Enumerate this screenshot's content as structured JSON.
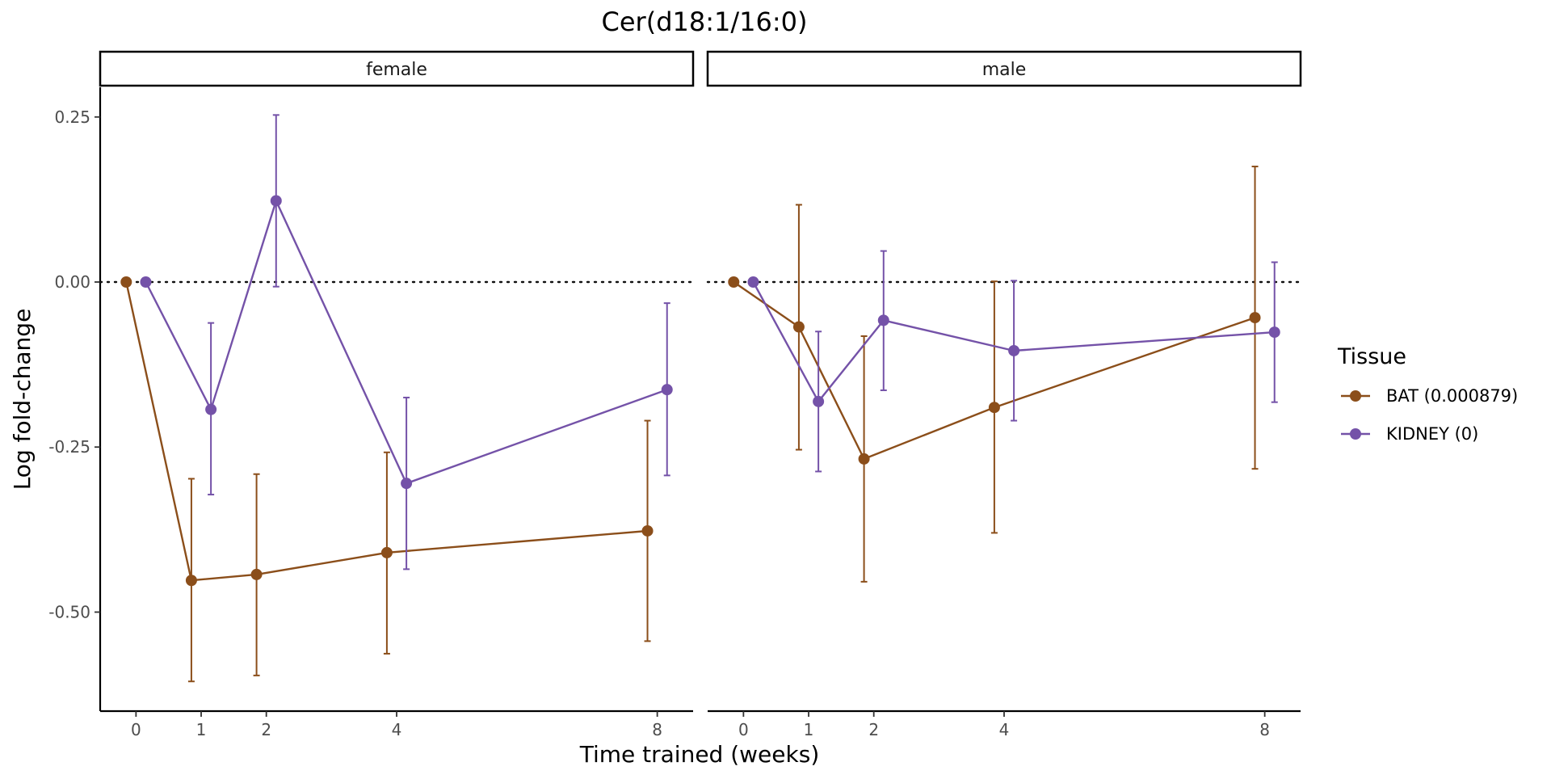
{
  "chart_data": {
    "type": "line",
    "title": "Cer(d18:1/16:0)",
    "xlabel": "Time trained (weeks)",
    "ylabel": "Log fold-change",
    "x_ticks": [
      0,
      1,
      2,
      4,
      8
    ],
    "y_ticks": [
      0.25,
      0.0,
      -0.25,
      -0.5
    ],
    "y_tick_labels": [
      "0.25",
      "0.00",
      "-0.25",
      "-0.50"
    ],
    "xlim": [
      -0.55,
      8.55
    ],
    "ylim": [
      -0.65,
      0.295
    ],
    "reference_line": {
      "y": 0,
      "style": "dotted"
    },
    "legend": {
      "title": "Tissue",
      "placement": "right",
      "entries": [
        "BAT (0.000879)",
        "KIDNEY (0)"
      ]
    },
    "colors": {
      "BAT": "#8B4E1A",
      "KIDNEY": "#7452A8"
    },
    "dodge": 0.15,
    "panels": [
      {
        "label": "female",
        "series": [
          {
            "name": "BAT (0.000879)",
            "tissue": "BAT",
            "points": [
              {
                "x": 0,
                "y": 0.0,
                "lo": null,
                "hi": null
              },
              {
                "x": 1,
                "y": -0.452,
                "lo": -0.605,
                "hi": -0.298
              },
              {
                "x": 2,
                "y": -0.443,
                "lo": -0.596,
                "hi": -0.291
              },
              {
                "x": 4,
                "y": -0.41,
                "lo": -0.563,
                "hi": -0.258
              },
              {
                "x": 8,
                "y": -0.377,
                "lo": -0.544,
                "hi": -0.21
              }
            ]
          },
          {
            "name": "KIDNEY (0)",
            "tissue": "KIDNEY",
            "points": [
              {
                "x": 0,
                "y": 0.0,
                "lo": null,
                "hi": null
              },
              {
                "x": 1,
                "y": -0.193,
                "lo": -0.322,
                "hi": -0.062
              },
              {
                "x": 2,
                "y": 0.123,
                "lo": -0.007,
                "hi": 0.253
              },
              {
                "x": 4,
                "y": -0.305,
                "lo": -0.435,
                "hi": -0.175
              },
              {
                "x": 8,
                "y": -0.163,
                "lo": -0.293,
                "hi": -0.032
              }
            ]
          }
        ]
      },
      {
        "label": "male",
        "series": [
          {
            "name": "BAT (0.000879)",
            "tissue": "BAT",
            "points": [
              {
                "x": 0,
                "y": 0.0,
                "lo": null,
                "hi": null
              },
              {
                "x": 1,
                "y": -0.068,
                "lo": -0.254,
                "hi": 0.117
              },
              {
                "x": 2,
                "y": -0.268,
                "lo": -0.454,
                "hi": -0.082
              },
              {
                "x": 4,
                "y": -0.19,
                "lo": -0.38,
                "hi": 0.001
              },
              {
                "x": 8,
                "y": -0.054,
                "lo": -0.283,
                "hi": 0.175
              }
            ]
          },
          {
            "name": "KIDNEY (0)",
            "tissue": "KIDNEY",
            "points": [
              {
                "x": 0,
                "y": 0.0,
                "lo": null,
                "hi": null
              },
              {
                "x": 1,
                "y": -0.181,
                "lo": -0.287,
                "hi": -0.075
              },
              {
                "x": 2,
                "y": -0.058,
                "lo": -0.164,
                "hi": 0.047
              },
              {
                "x": 4,
                "y": -0.104,
                "lo": -0.21,
                "hi": 0.002
              },
              {
                "x": 8,
                "y": -0.076,
                "lo": -0.182,
                "hi": 0.03
              }
            ]
          }
        ]
      }
    ]
  }
}
